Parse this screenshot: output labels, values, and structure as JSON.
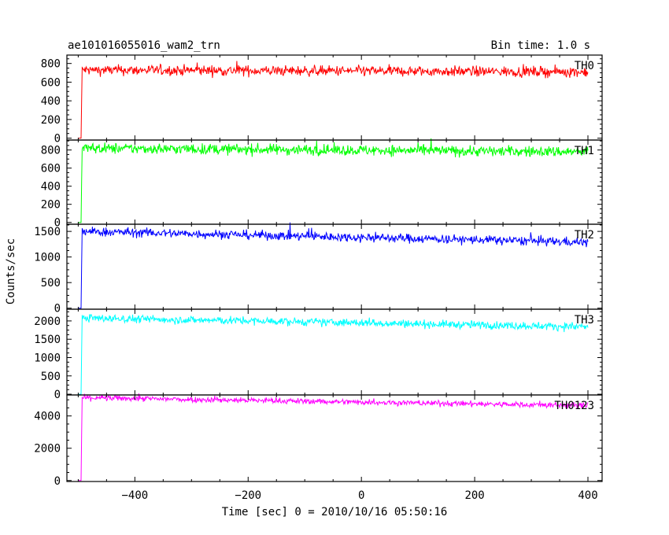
{
  "chart_data": {
    "type": "line",
    "title": "ae101016055016_wam2_trn",
    "subtitle": "Bin time: 1.0 s",
    "xlabel": "Time [sec] 0 = 2010/10/16 05:50:16",
    "ylabel": "Counts/sec",
    "xlim": [
      -520,
      425
    ],
    "x_ticks": [
      -400,
      -200,
      0,
      200,
      400
    ],
    "x_tick_labels": [
      "−400",
      "−200",
      "0",
      "200",
      "400"
    ],
    "x_start": -500,
    "rise_time": -495,
    "panels": [
      {
        "name": "TH0",
        "color": "#ff0000",
        "ylim": [
          -20,
          890
        ],
        "y_ticks": [
          0,
          200,
          400,
          600,
          800
        ],
        "y_tick_labels": [
          "0",
          "200",
          "400",
          "600",
          "800"
        ],
        "level_start": 730,
        "level_end": 710,
        "noise": 28
      },
      {
        "name": "TH1",
        "color": "#00ff00",
        "ylim": [
          -20,
          910
        ],
        "y_ticks": [
          0,
          200,
          400,
          600,
          800
        ],
        "y_tick_labels": [
          "0",
          "200",
          "400",
          "600",
          "800"
        ],
        "level_start": 820,
        "level_end": 780,
        "noise": 30
      },
      {
        "name": "TH2",
        "color": "#0000ff",
        "ylim": [
          -20,
          1640
        ],
        "y_ticks": [
          0,
          500,
          1000,
          1500
        ],
        "y_tick_labels": [
          "0",
          "500",
          "1000",
          "1500"
        ],
        "level_start": 1500,
        "level_end": 1290,
        "noise": 45
      },
      {
        "name": "TH3",
        "color": "#00ffff",
        "ylim": [
          -20,
          2320
        ],
        "y_ticks": [
          0,
          500,
          1000,
          1500,
          2000
        ],
        "y_tick_labels": [
          "0",
          "500",
          "1000",
          "1500",
          "2000"
        ],
        "level_start": 2080,
        "level_end": 1840,
        "noise": 55
      },
      {
        "name": "TH0123",
        "color": "#ff00ff",
        "ylim": [
          -60,
          5300
        ],
        "y_ticks": [
          0,
          2000,
          4000
        ],
        "y_tick_labels": [
          "0",
          "2000",
          "4000"
        ],
        "level_start": 5130,
        "level_end": 4640,
        "noise": 90
      }
    ]
  }
}
